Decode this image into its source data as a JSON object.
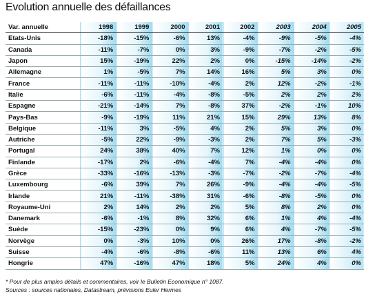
{
  "title": "Evolution annuelle des défaillances",
  "table": {
    "header": [
      "Var. annuelle",
      "1998",
      "1999",
      "2000",
      "2001",
      "2002",
      "2003",
      "2004",
      "2005"
    ],
    "rows": [
      [
        "Etats-Unis",
        "-18%",
        "-15%",
        "-6%",
        "13%",
        "-4%",
        "-9%",
        "-5%",
        "-4%"
      ],
      [
        "Canada",
        "-11%",
        "-7%",
        "0%",
        "3%",
        "-9%",
        "-7%",
        "-2%",
        "-5%"
      ],
      [
        "Japon",
        "15%",
        "-19%",
        "22%",
        "2%",
        "0%",
        "-15%",
        "-14%",
        "-2%"
      ],
      [
        "Allemagne",
        "1%",
        "-5%",
        "7%",
        "14%",
        "16%",
        "5%",
        "3%",
        "0%"
      ],
      [
        "France",
        "-11%",
        "-11%",
        "-10%",
        "-4%",
        "2%",
        "12%",
        "-2%",
        "-1%"
      ],
      [
        "Italie",
        "-6%",
        "-11%",
        "-4%",
        "-8%",
        "-5%",
        "2%",
        "2%",
        "2%"
      ],
      [
        "Espagne",
        "-21%",
        "-14%",
        "7%",
        "-8%",
        "37%",
        "-2%",
        "-1%",
        "10%"
      ],
      [
        "Pays-Bas",
        "-9%",
        "-19%",
        "11%",
        "21%",
        "15%",
        "29%",
        "13%",
        "8%"
      ],
      [
        "Belgique",
        "-11%",
        "3%",
        "-5%",
        "4%",
        "2%",
        "5%",
        "3%",
        "0%"
      ],
      [
        "Autriche",
        "-5%",
        "22%",
        "-9%",
        "-3%",
        "2%",
        "7%",
        "5%",
        "-3%"
      ],
      [
        "Portugal",
        "24%",
        "38%",
        "40%",
        "7%",
        "12%",
        "1%",
        "0%",
        "0%"
      ],
      [
        "Finlande",
        "-17%",
        "2%",
        "-6%",
        "-4%",
        "7%",
        "-4%",
        "-4%",
        "0%"
      ],
      [
        "Grèce",
        "-33%",
        "-16%",
        "-13%",
        "-3%",
        "-7%",
        "-2%",
        "-7%",
        "-4%"
      ],
      [
        "Luxembourg",
        "-6%",
        "39%",
        "7%",
        "26%",
        "-9%",
        "-4%",
        "-4%",
        "-5%"
      ],
      [
        "Irlande",
        "21%",
        "-11%",
        "-38%",
        "31%",
        "-6%",
        "-8%",
        "-5%",
        "0%"
      ],
      [
        "Royaume-Uni",
        "2%",
        "14%",
        "2%",
        "2%",
        "5%",
        "8%",
        "2%",
        "0%"
      ],
      [
        "Danemark",
        "-6%",
        "-1%",
        "8%",
        "32%",
        "6%",
        "1%",
        "4%",
        "-4%"
      ],
      [
        "Suède",
        "-15%",
        "-23%",
        "0%",
        "9%",
        "6%",
        "4%",
        "-7%",
        "-5%"
      ],
      [
        "Norvège",
        "0%",
        "-3%",
        "10%",
        "0%",
        "26%",
        "17%",
        "-8%",
        "-2%"
      ],
      [
        "Suisse",
        "-4%",
        "-6%",
        "-8%",
        "-6%",
        "11%",
        "13%",
        "6%",
        "4%"
      ],
      [
        "Hongrie",
        "47%",
        "-16%",
        "47%",
        "18%",
        "5%",
        "24%",
        "4%",
        "0%"
      ]
    ]
  },
  "footnotes": [
    "* Pour de plus amples détails et commentaires, voir le Bulletin Economique n° 1087.",
    "Sources : sources nationales, Datastream, prévisions Euler Hermes"
  ]
}
